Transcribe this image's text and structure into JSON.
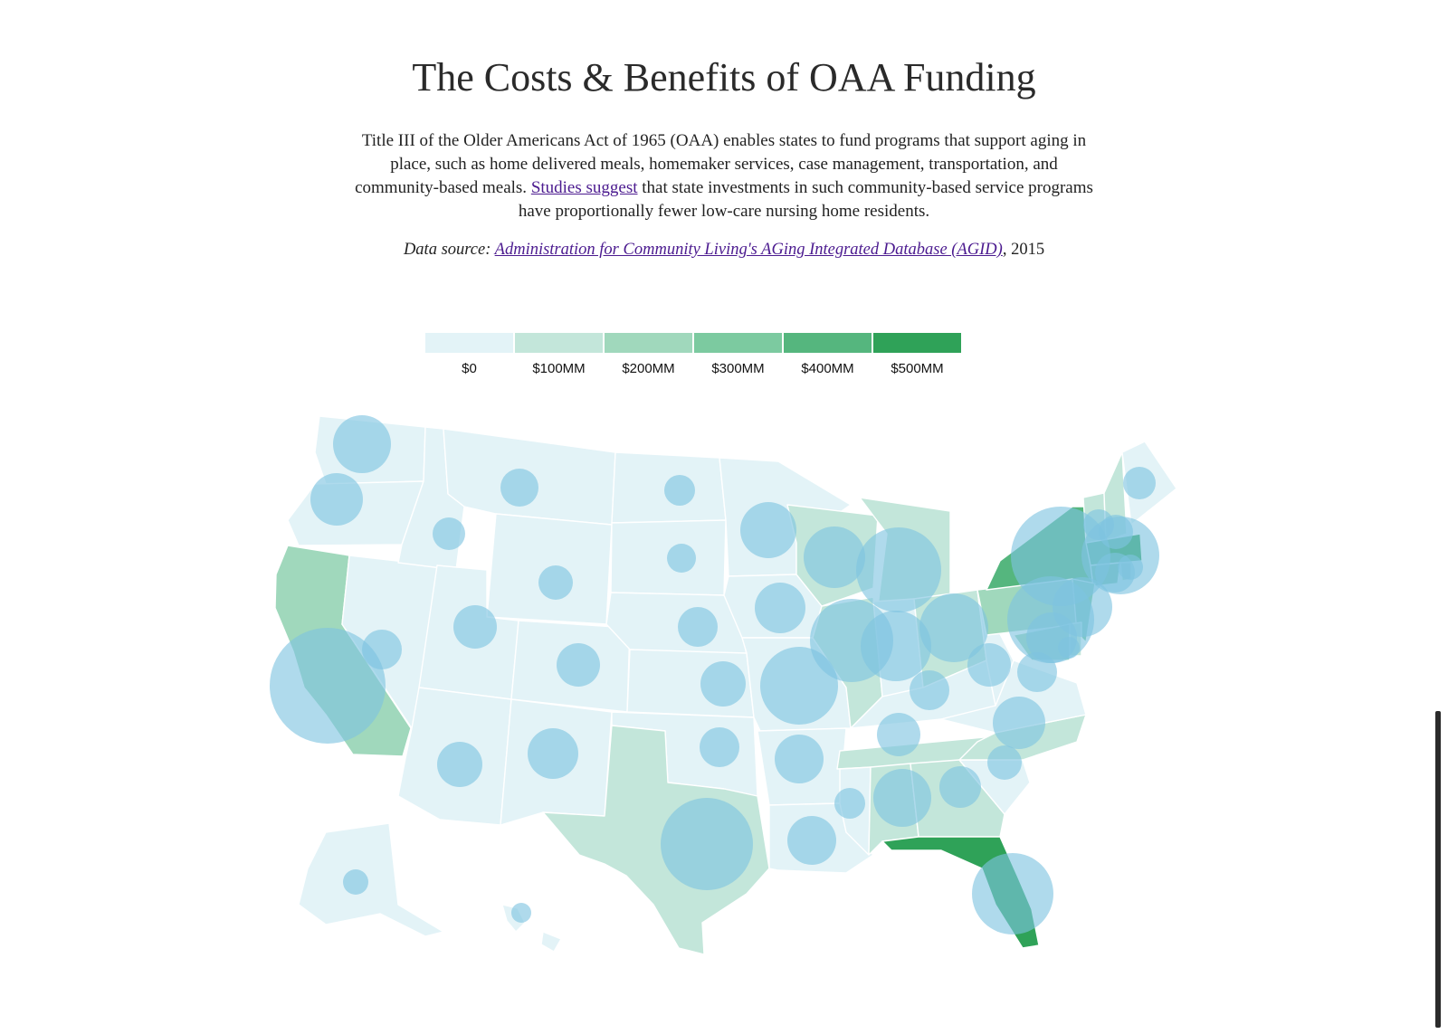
{
  "title": "The Costs & Benefits of OAA Funding",
  "intro": {
    "before_link": "Title III of the Older Americans Act of 1965 (OAA) enables states to fund programs that support aging in place, such as home delivered meals, homemaker services, case management, transportation, and community-based meals. ",
    "link_text": "Studies suggest",
    "after_link": " that state investments in such community-based service programs have proportionally fewer low-care nursing home residents."
  },
  "source": {
    "label": "Data source: ",
    "link_text": "Administration for Community Living's AGing Integrated Database (AGID)",
    "suffix": ", 2015"
  },
  "legend": {
    "items": [
      {
        "label": "$0",
        "color": "#e3f3f7"
      },
      {
        "label": "$100MM",
        "color": "#c3e6da"
      },
      {
        "label": "$200MM",
        "color": "#a0d8bc"
      },
      {
        "label": "$300MM",
        "color": "#7ccaa0"
      },
      {
        "label": "$400MM",
        "color": "#55b67e"
      },
      {
        "label": "$500MM",
        "color": "#2fa258"
      }
    ]
  },
  "colors": {
    "bubble": "#7ec3e0",
    "scrollbar": "#2b2b2b"
  },
  "map": {
    "states": [
      {
        "id": "WA",
        "tier": 0.4
      },
      {
        "id": "OR",
        "tier": 0.45
      },
      {
        "id": "CA",
        "tier": 2.2
      },
      {
        "id": "NV",
        "tier": 0.2
      },
      {
        "id": "ID",
        "tier": 0.2
      },
      {
        "id": "MT",
        "tier": 0.15
      },
      {
        "id": "WY",
        "tier": 0.1
      },
      {
        "id": "UT",
        "tier": 0.2
      },
      {
        "id": "AZ",
        "tier": 0.4
      },
      {
        "id": "CO",
        "tier": 0.3
      },
      {
        "id": "NM",
        "tier": 0.3
      },
      {
        "id": "ND",
        "tier": 0.15
      },
      {
        "id": "SD",
        "tier": 0.15
      },
      {
        "id": "NE",
        "tier": 0.2
      },
      {
        "id": "KS",
        "tier": 0.2
      },
      {
        "id": "OK",
        "tier": 0.3
      },
      {
        "id": "TX",
        "tier": 1.3
      },
      {
        "id": "MN",
        "tier": 0.4
      },
      {
        "id": "IA",
        "tier": 0.3
      },
      {
        "id": "MO",
        "tier": 0.45
      },
      {
        "id": "AR",
        "tier": 0.3
      },
      {
        "id": "LA",
        "tier": 0.4
      },
      {
        "id": "WI",
        "tier": 0.5
      },
      {
        "id": "IL",
        "tier": 0.7
      },
      {
        "id": "MI",
        "tier": 0.8
      },
      {
        "id": "IN",
        "tier": 0.4
      },
      {
        "id": "OH",
        "tier": 0.6
      },
      {
        "id": "KY",
        "tier": 0.4
      },
      {
        "id": "TN",
        "tier": 0.5
      },
      {
        "id": "MS",
        "tier": 0.3
      },
      {
        "id": "AL",
        "tier": 0.6
      },
      {
        "id": "GA",
        "tier": 0.5
      },
      {
        "id": "FL",
        "tier": 4.8
      },
      {
        "id": "SC",
        "tier": 0.4
      },
      {
        "id": "NC",
        "tier": 0.7
      },
      {
        "id": "VA",
        "tier": 0.4
      },
      {
        "id": "WV",
        "tier": 0.3
      },
      {
        "id": "PA",
        "tier": 2.4
      },
      {
        "id": "NY",
        "tier": 4.2
      },
      {
        "id": "VT",
        "tier": 0.7
      },
      {
        "id": "NH",
        "tier": 0.7
      },
      {
        "id": "ME",
        "tier": 0.3
      },
      {
        "id": "MA",
        "tier": 4.5
      },
      {
        "id": "CT",
        "tier": 3.5
      },
      {
        "id": "RI",
        "tier": 2.0
      },
      {
        "id": "NJ",
        "tier": 2.6
      },
      {
        "id": "DE",
        "tier": 1.0
      },
      {
        "id": "MD",
        "tier": 1.5
      },
      {
        "id": "AK",
        "tier": 0.3
      },
      {
        "id": "HI",
        "tier": 0.3
      }
    ],
    "bubbles": [
      {
        "id": "WA",
        "r": 32
      },
      {
        "id": "OR",
        "r": 29
      },
      {
        "id": "CA",
        "r": 64
      },
      {
        "id": "NV",
        "r": 22
      },
      {
        "id": "ID",
        "r": 18
      },
      {
        "id": "MT",
        "r": 21
      },
      {
        "id": "WY",
        "r": 19
      },
      {
        "id": "UT",
        "r": 24
      },
      {
        "id": "AZ",
        "r": 25
      },
      {
        "id": "CO",
        "r": 24
      },
      {
        "id": "NM",
        "r": 28
      },
      {
        "id": "ND",
        "r": 17
      },
      {
        "id": "SD",
        "r": 16
      },
      {
        "id": "NE",
        "r": 22
      },
      {
        "id": "KS",
        "r": 25
      },
      {
        "id": "OK",
        "r": 22
      },
      {
        "id": "TX",
        "r": 51
      },
      {
        "id": "MN",
        "r": 31
      },
      {
        "id": "IA",
        "r": 28
      },
      {
        "id": "MO",
        "r": 43
      },
      {
        "id": "AR",
        "r": 27
      },
      {
        "id": "LA",
        "r": 27
      },
      {
        "id": "WI",
        "r": 34
      },
      {
        "id": "IL",
        "r": 46
      },
      {
        "id": "MI",
        "r": 47
      },
      {
        "id": "IN",
        "r": 39
      },
      {
        "id": "OH",
        "r": 38
      },
      {
        "id": "KY",
        "r": 22
      },
      {
        "id": "TN",
        "r": 24
      },
      {
        "id": "MS",
        "r": 17
      },
      {
        "id": "AL",
        "r": 32
      },
      {
        "id": "GA",
        "r": 23
      },
      {
        "id": "FL",
        "r": 45
      },
      {
        "id": "SC",
        "r": 19
      },
      {
        "id": "NC",
        "r": 29
      },
      {
        "id": "VA",
        "r": 22
      },
      {
        "id": "WV",
        "r": 24
      },
      {
        "id": "PA",
        "r": 48
      },
      {
        "id": "NY",
        "r": 55
      },
      {
        "id": "VT",
        "r": 17
      },
      {
        "id": "NH",
        "r": 19
      },
      {
        "id": "ME",
        "r": 18
      },
      {
        "id": "MA",
        "r": 43
      },
      {
        "id": "CT",
        "r": 22
      },
      {
        "id": "RI",
        "r": 14
      },
      {
        "id": "NJ",
        "r": 33
      },
      {
        "id": "DE",
        "r": 12
      },
      {
        "id": "MD",
        "r": 28
      },
      {
        "id": "AK",
        "r": 14
      },
      {
        "id": "HI",
        "r": 11
      }
    ]
  }
}
